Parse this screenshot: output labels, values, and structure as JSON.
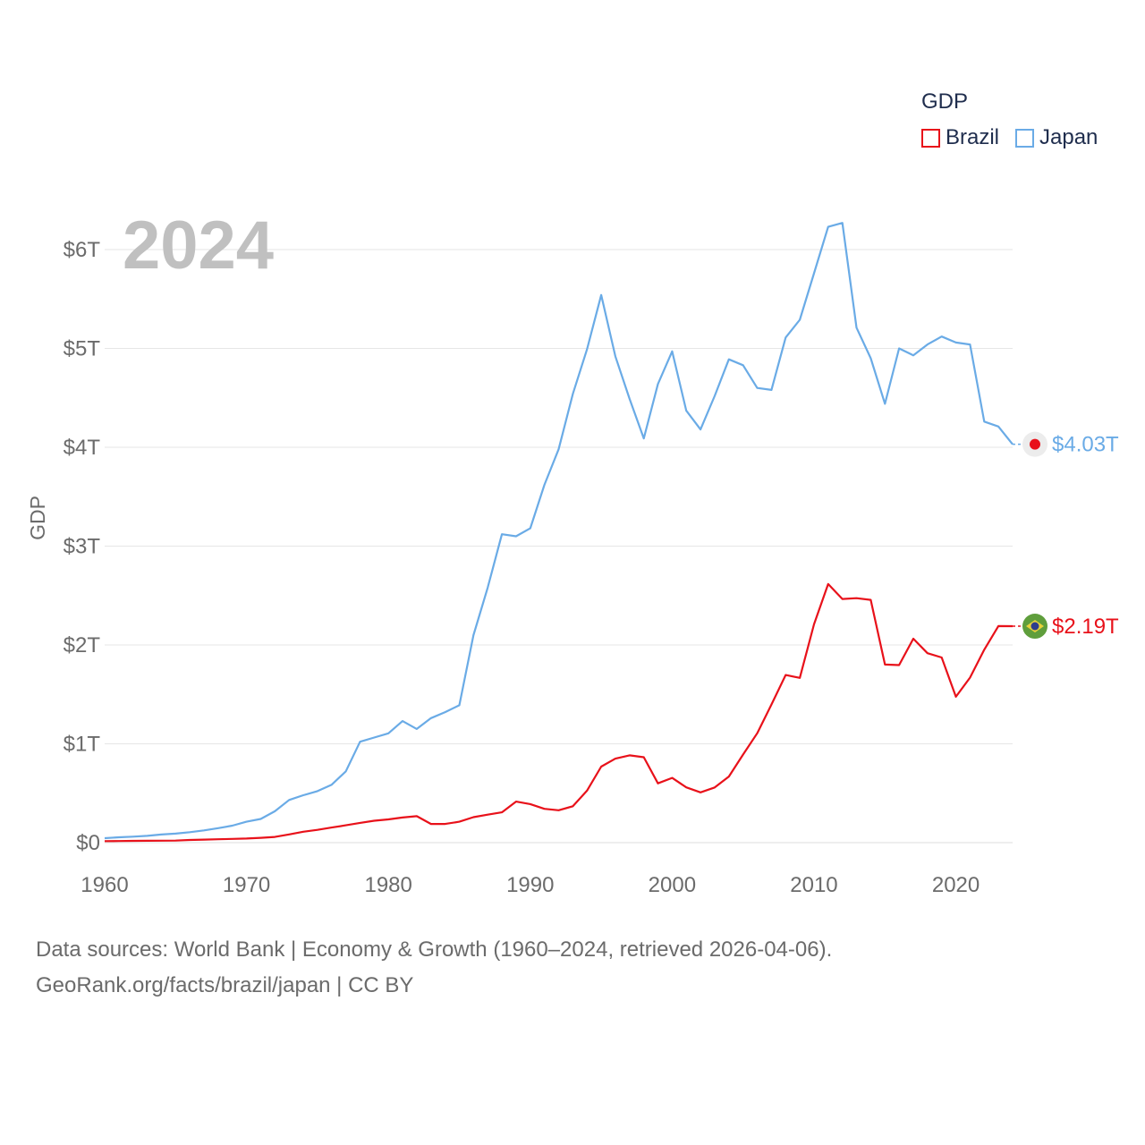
{
  "chart_data": {
    "type": "line",
    "year_label": "2024",
    "ylabel": "GDP",
    "xlabel": "",
    "xlim": [
      1960,
      2024
    ],
    "ylim": [
      0,
      6.2
    ],
    "x_ticks": [
      1960,
      1970,
      1980,
      1990,
      2000,
      2010,
      2020
    ],
    "y_ticks": [
      {
        "value": 0,
        "label": "$0"
      },
      {
        "value": 1,
        "label": "$1T"
      },
      {
        "value": 2,
        "label": "$2T"
      },
      {
        "value": 3,
        "label": "$3T"
      },
      {
        "value": 4,
        "label": "$4T"
      },
      {
        "value": 5,
        "label": "$5T"
      },
      {
        "value": 6,
        "label": "$6T"
      }
    ],
    "legend": {
      "title": "GDP",
      "items": [
        {
          "name": "Brazil",
          "color": "#e8111a"
        },
        {
          "name": "Japan",
          "color": "#6aabe6"
        }
      ]
    },
    "x": [
      1960,
      1961,
      1962,
      1963,
      1964,
      1965,
      1966,
      1967,
      1968,
      1969,
      1970,
      1971,
      1972,
      1973,
      1974,
      1975,
      1976,
      1977,
      1978,
      1979,
      1980,
      1981,
      1982,
      1983,
      1984,
      1985,
      1986,
      1987,
      1988,
      1989,
      1990,
      1991,
      1992,
      1993,
      1994,
      1995,
      1996,
      1997,
      1998,
      1999,
      2000,
      2001,
      2002,
      2003,
      2004,
      2005,
      2006,
      2007,
      2008,
      2009,
      2010,
      2011,
      2012,
      2013,
      2014,
      2015,
      2016,
      2017,
      2018,
      2019,
      2020,
      2021,
      2022,
      2023,
      2024
    ],
    "series": [
      {
        "name": "Japan",
        "color": "#6aabe6",
        "end_label": "$4.03T",
        "values": [
          0.045,
          0.054,
          0.061,
          0.069,
          0.082,
          0.091,
          0.106,
          0.124,
          0.147,
          0.172,
          0.212,
          0.24,
          0.318,
          0.432,
          0.48,
          0.521,
          0.586,
          0.721,
          1.021,
          1.063,
          1.106,
          1.23,
          1.15,
          1.26,
          1.32,
          1.39,
          2.1,
          2.58,
          3.12,
          3.1,
          3.18,
          3.62,
          3.98,
          4.54,
          4.99,
          5.54,
          4.92,
          4.49,
          4.09,
          4.64,
          4.97,
          4.37,
          4.18,
          4.52,
          4.89,
          4.83,
          4.6,
          4.58,
          5.11,
          5.29,
          5.76,
          6.23,
          6.27,
          5.21,
          4.9,
          4.44,
          5.0,
          4.93,
          5.04,
          5.12,
          5.06,
          5.04,
          4.26,
          4.21,
          4.03
        ]
      },
      {
        "name": "Brazil",
        "color": "#e8111a",
        "end_label": "$2.19T",
        "values": [
          0.015,
          0.016,
          0.018,
          0.019,
          0.02,
          0.021,
          0.027,
          0.031,
          0.034,
          0.038,
          0.042,
          0.049,
          0.058,
          0.083,
          0.11,
          0.129,
          0.153,
          0.176,
          0.2,
          0.222,
          0.235,
          0.254,
          0.268,
          0.189,
          0.189,
          0.212,
          0.258,
          0.283,
          0.307,
          0.415,
          0.39,
          0.342,
          0.328,
          0.368,
          0.526,
          0.769,
          0.85,
          0.883,
          0.864,
          0.6,
          0.655,
          0.559,
          0.509,
          0.558,
          0.669,
          0.891,
          1.107,
          1.397,
          1.696,
          1.667,
          2.209,
          2.616,
          2.465,
          2.473,
          2.456,
          1.802,
          1.796,
          2.063,
          1.917,
          1.873,
          1.476,
          1.67,
          1.952,
          2.191,
          2.19
        ]
      }
    ]
  },
  "footer": {
    "line1": "Data sources: World Bank | Economy & Growth (1960–2024, retrieved 2026-04-06).",
    "line2": "GeoRank.org/facts/brazil/japan | CC BY"
  }
}
